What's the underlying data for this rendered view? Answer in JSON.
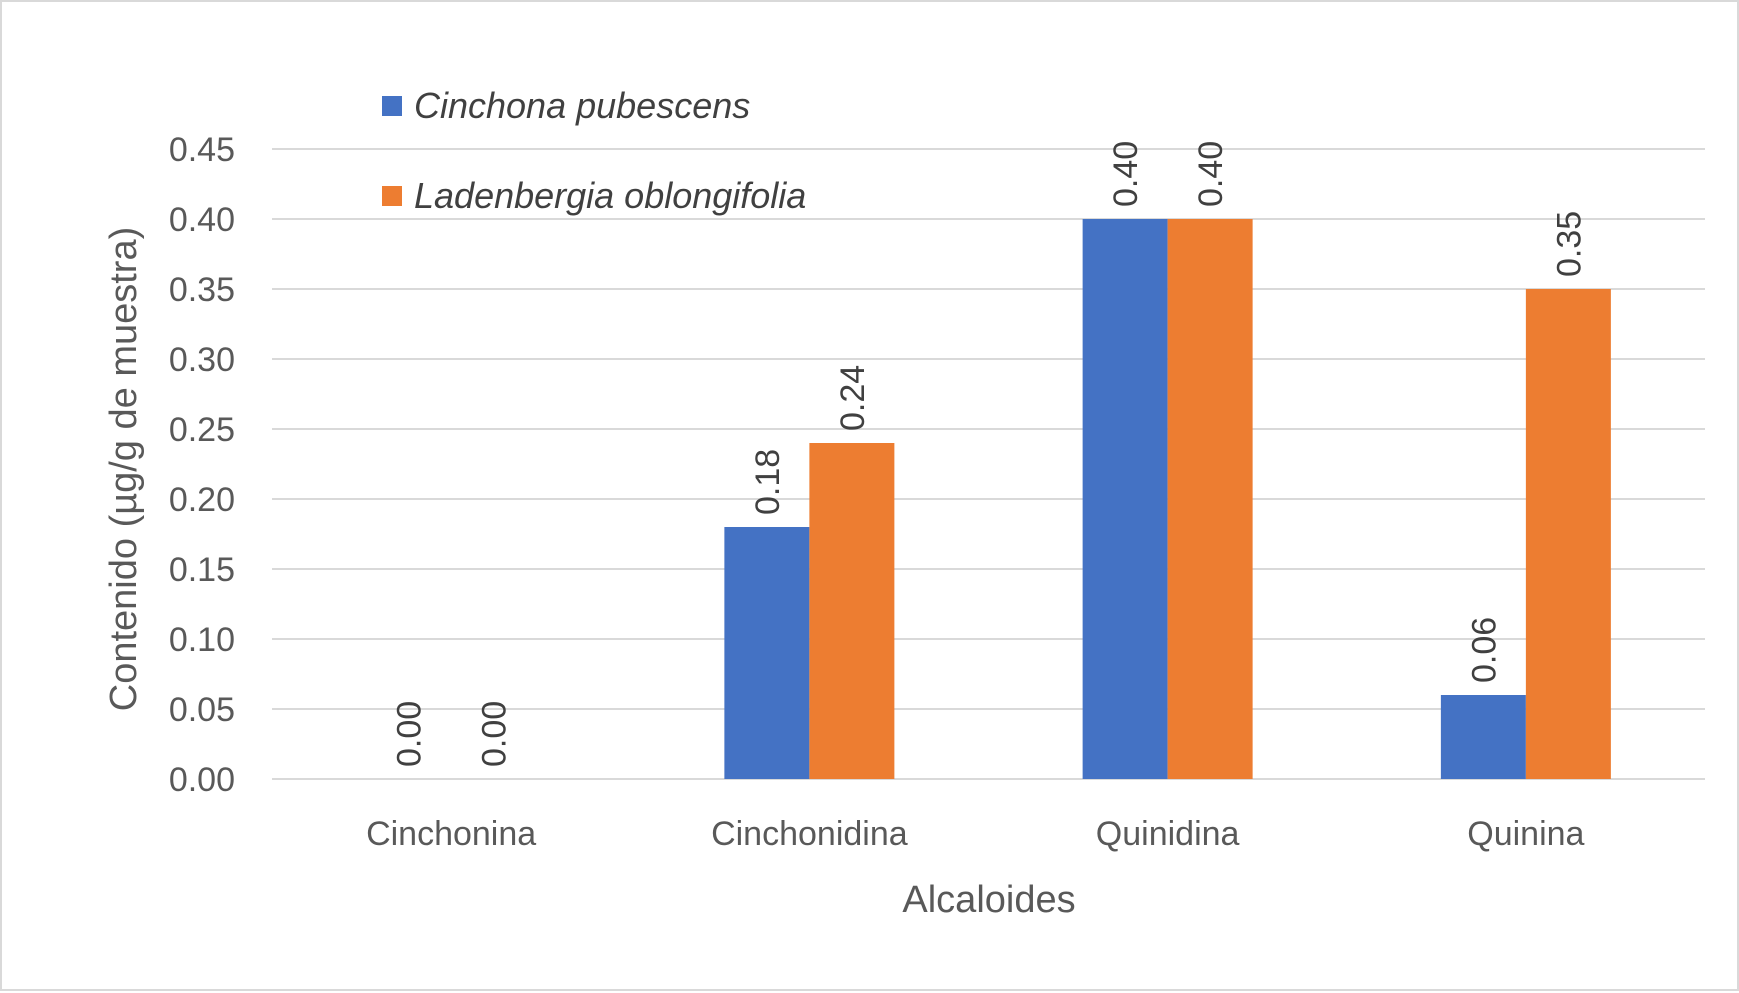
{
  "chart_data": {
    "type": "bar",
    "title": "",
    "xlabel": "Alcaloides",
    "ylabel": "Contenido (µg/g de muestra)",
    "categories": [
      "Cinchonina",
      "Cinchonidina",
      "Quinidina",
      "Quinina"
    ],
    "series": [
      {
        "name": "Cinchona pubescens",
        "values": [
          0.0,
          0.18,
          0.4,
          0.06
        ],
        "color": "#4472C4"
      },
      {
        "name": "Ladenbergia oblongifolia",
        "values": [
          0.0,
          0.24,
          0.4,
          0.35
        ],
        "color": "#ED7D31"
      }
    ],
    "ylim": [
      0,
      0.45
    ],
    "yticks": [
      "0.00",
      "0.05",
      "0.10",
      "0.15",
      "0.20",
      "0.25",
      "0.30",
      "0.35",
      "0.40",
      "0.45"
    ],
    "grid": true,
    "legend_position": "top-left",
    "data_labels": true,
    "gridline_color": "#d9d9d9"
  }
}
